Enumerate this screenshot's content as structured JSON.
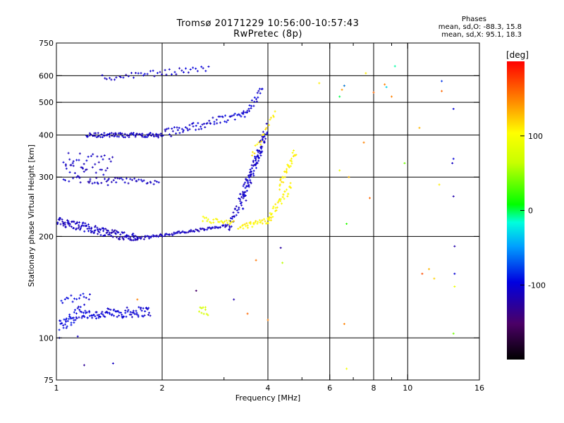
{
  "header": {
    "title": "Tromsø 20171229 10:56:00-10:57:43",
    "subtitle": "RwPretec (8p)",
    "phases_title": "Phases",
    "phases_o": "mean, sd,O: -88.3, 15.8",
    "phases_x": "mean, sd,X: 95.1, 18.3"
  },
  "colorbar": {
    "label": "[deg]",
    "range": [
      -200,
      200
    ],
    "ticks": [
      {
        "value": 100,
        "label": "100"
      },
      {
        "value": 0,
        "label": "0"
      },
      {
        "value": -100,
        "label": "-100"
      }
    ]
  },
  "chart_data": {
    "type": "scatter",
    "title": "Tromsø 20171229 10:56:00-10:57:43",
    "subtitle": "RwPretec (8p)",
    "xlabel": "Frequency [MHz]",
    "ylabel": "Stationary phase Virtual Height [km]",
    "x_scale": "log",
    "y_scale": "log",
    "xlim": [
      1,
      16
    ],
    "ylim": [
      75,
      750
    ],
    "x_ticks": [
      {
        "value": 1,
        "label": "1"
      },
      {
        "value": 2,
        "label": "2"
      },
      {
        "value": 4,
        "label": "4"
      },
      {
        "value": 6,
        "label": "6"
      },
      {
        "value": 8,
        "label": "8"
      },
      {
        "value": 10,
        "label": "10"
      },
      {
        "value": 16,
        "label": "16"
      }
    ],
    "x_minor": [
      3,
      5,
      7,
      9
    ],
    "y_ticks": [
      {
        "value": 75,
        "label": "75"
      },
      {
        "value": 100,
        "label": "100"
      },
      {
        "value": 200,
        "label": "200"
      },
      {
        "value": 300,
        "label": "300"
      },
      {
        "value": 400,
        "label": "400"
      },
      {
        "value": 500,
        "label": "500"
      },
      {
        "value": 600,
        "label": "600"
      },
      {
        "value": 750,
        "label": "750"
      }
    ],
    "grid_x": [
      2,
      4,
      6,
      8,
      10
    ],
    "grid_y": [
      100,
      200,
      300,
      400,
      500,
      600
    ],
    "grid": true,
    "color_by": "phase",
    "traces": [
      {
        "x0": 1.2,
        "x1": 1.85,
        "y0": 117,
        "y1": 120,
        "p0": -100,
        "p1": -105,
        "n": 90,
        "jit": 0.035
      },
      {
        "x0": 1.02,
        "x1": 1.2,
        "y0": 108,
        "y1": 122,
        "p0": -95,
        "p1": -100,
        "n": 45,
        "jit": 0.05
      },
      {
        "x0": 1.03,
        "x1": 1.25,
        "y0": 130,
        "y1": 132,
        "p0": -98,
        "p1": -100,
        "n": 16,
        "jit": 0.03
      },
      {
        "x0": 1.0,
        "x1": 1.7,
        "y0": 222,
        "y1": 197,
        "p0": -110,
        "p1": -112,
        "n": 140,
        "jit": 0.03
      },
      {
        "x0": 1.7,
        "x1": 3.1,
        "y0": 197,
        "y1": 215,
        "p0": -112,
        "p1": -110,
        "n": 90,
        "jit": 0.01
      },
      {
        "x0": 3.1,
        "x1": 3.9,
        "y0": 215,
        "y1": 380,
        "p0": -110,
        "p1": -105,
        "n": 70,
        "jit": 0.05
      },
      {
        "x0": 3.35,
        "x1": 3.98,
        "y0": 245,
        "y1": 420,
        "p0": -105,
        "p1": -110,
        "n": 60,
        "jit": 0.06
      },
      {
        "x0": 1.22,
        "x1": 1.95,
        "y0": 400,
        "y1": 400,
        "p0": -108,
        "p1": -110,
        "n": 80,
        "jit": 0.015
      },
      {
        "x0": 1.95,
        "x1": 3.4,
        "y0": 400,
        "y1": 460,
        "p0": -110,
        "p1": -100,
        "n": 70,
        "jit": 0.03
      },
      {
        "x0": 3.4,
        "x1": 3.85,
        "y0": 460,
        "y1": 540,
        "p0": -100,
        "p1": -105,
        "n": 25,
        "jit": 0.03
      },
      {
        "x0": 1.35,
        "x1": 2.7,
        "y0": 590,
        "y1": 630,
        "p0": -110,
        "p1": -105,
        "n": 45,
        "jit": 0.02
      },
      {
        "x0": 1.05,
        "x1": 1.4,
        "y0": 310,
        "y1": 300,
        "p0": -110,
        "p1": -115,
        "n": 40,
        "jit": 0.06
      },
      {
        "x0": 1.4,
        "x1": 1.95,
        "y0": 293,
        "y1": 290,
        "p0": -110,
        "p1": -110,
        "n": 30,
        "jit": 0.02
      },
      {
        "x0": 1.05,
        "x1": 1.45,
        "y0": 340,
        "y1": 330,
        "p0": -110,
        "p1": -110,
        "n": 25,
        "jit": 0.05
      },
      {
        "x0": 2.6,
        "x1": 3.2,
        "y0": 225,
        "y1": 218,
        "p0": 100,
        "p1": 110,
        "n": 25,
        "jit": 0.02
      },
      {
        "x0": 3.3,
        "x1": 4.1,
        "y0": 212,
        "y1": 225,
        "p0": 110,
        "p1": 105,
        "n": 35,
        "jit": 0.02
      },
      {
        "x0": 4.0,
        "x1": 4.65,
        "y0": 225,
        "y1": 280,
        "p0": 105,
        "p1": 108,
        "n": 35,
        "jit": 0.03
      },
      {
        "x0": 4.3,
        "x1": 4.8,
        "y0": 280,
        "y1": 360,
        "p0": 108,
        "p1": 110,
        "n": 30,
        "jit": 0.03
      },
      {
        "x0": 3.6,
        "x1": 4.2,
        "y0": 350,
        "y1": 460,
        "p0": 115,
        "p1": 110,
        "n": 18,
        "jit": 0.03
      },
      {
        "x0": 2.55,
        "x1": 2.7,
        "y0": 122,
        "y1": 120,
        "p0": 65,
        "p1": 80,
        "n": 10,
        "jit": 0.03
      }
    ],
    "points": [
      [
        1.02,
        100,
        -100
      ],
      [
        1.2,
        83,
        -130
      ],
      [
        1.45,
        84,
        -110
      ],
      [
        1.15,
        101,
        -110
      ],
      [
        2.5,
        138,
        -150
      ],
      [
        3.2,
        130,
        -120
      ],
      [
        3.5,
        118,
        160
      ],
      [
        4.0,
        113,
        150
      ],
      [
        3.7,
        170,
        155
      ],
      [
        4.4,
        167,
        60
      ],
      [
        4.35,
        185,
        -125
      ],
      [
        5.6,
        570,
        110
      ],
      [
        6.4,
        520,
        0
      ],
      [
        6.5,
        545,
        140
      ],
      [
        6.6,
        560,
        120
      ],
      [
        6.6,
        560,
        -60
      ],
      [
        7.6,
        610,
        110
      ],
      [
        8.0,
        535,
        160
      ],
      [
        8.6,
        565,
        150
      ],
      [
        8.7,
        555,
        -30
      ],
      [
        9.2,
        640,
        -10
      ],
      [
        7.5,
        380,
        150
      ],
      [
        7.8,
        260,
        160
      ],
      [
        6.8,
        300,
        130
      ],
      [
        6.7,
        218,
        20
      ],
      [
        6.4,
        314,
        90
      ],
      [
        6.6,
        110,
        150
      ],
      [
        6.7,
        81,
        95
      ],
      [
        9.0,
        520,
        150
      ],
      [
        9.8,
        330,
        40
      ],
      [
        11.0,
        155,
        170
      ],
      [
        11.5,
        160,
        130
      ],
      [
        11.9,
        150,
        120
      ],
      [
        12.5,
        578,
        -80
      ],
      [
        12.5,
        540,
        160
      ],
      [
        13.5,
        478,
        -100
      ],
      [
        13.5,
        340,
        -100
      ],
      [
        13.4,
        330,
        -110
      ],
      [
        13.5,
        263,
        -120
      ],
      [
        13.6,
        187,
        -120
      ],
      [
        13.6,
        155,
        -100
      ],
      [
        13.6,
        142,
        90
      ],
      [
        13.5,
        103,
        40
      ],
      [
        12.3,
        285,
        110
      ],
      [
        10.8,
        420,
        130
      ],
      [
        1.7,
        130,
        150
      ]
    ]
  }
}
